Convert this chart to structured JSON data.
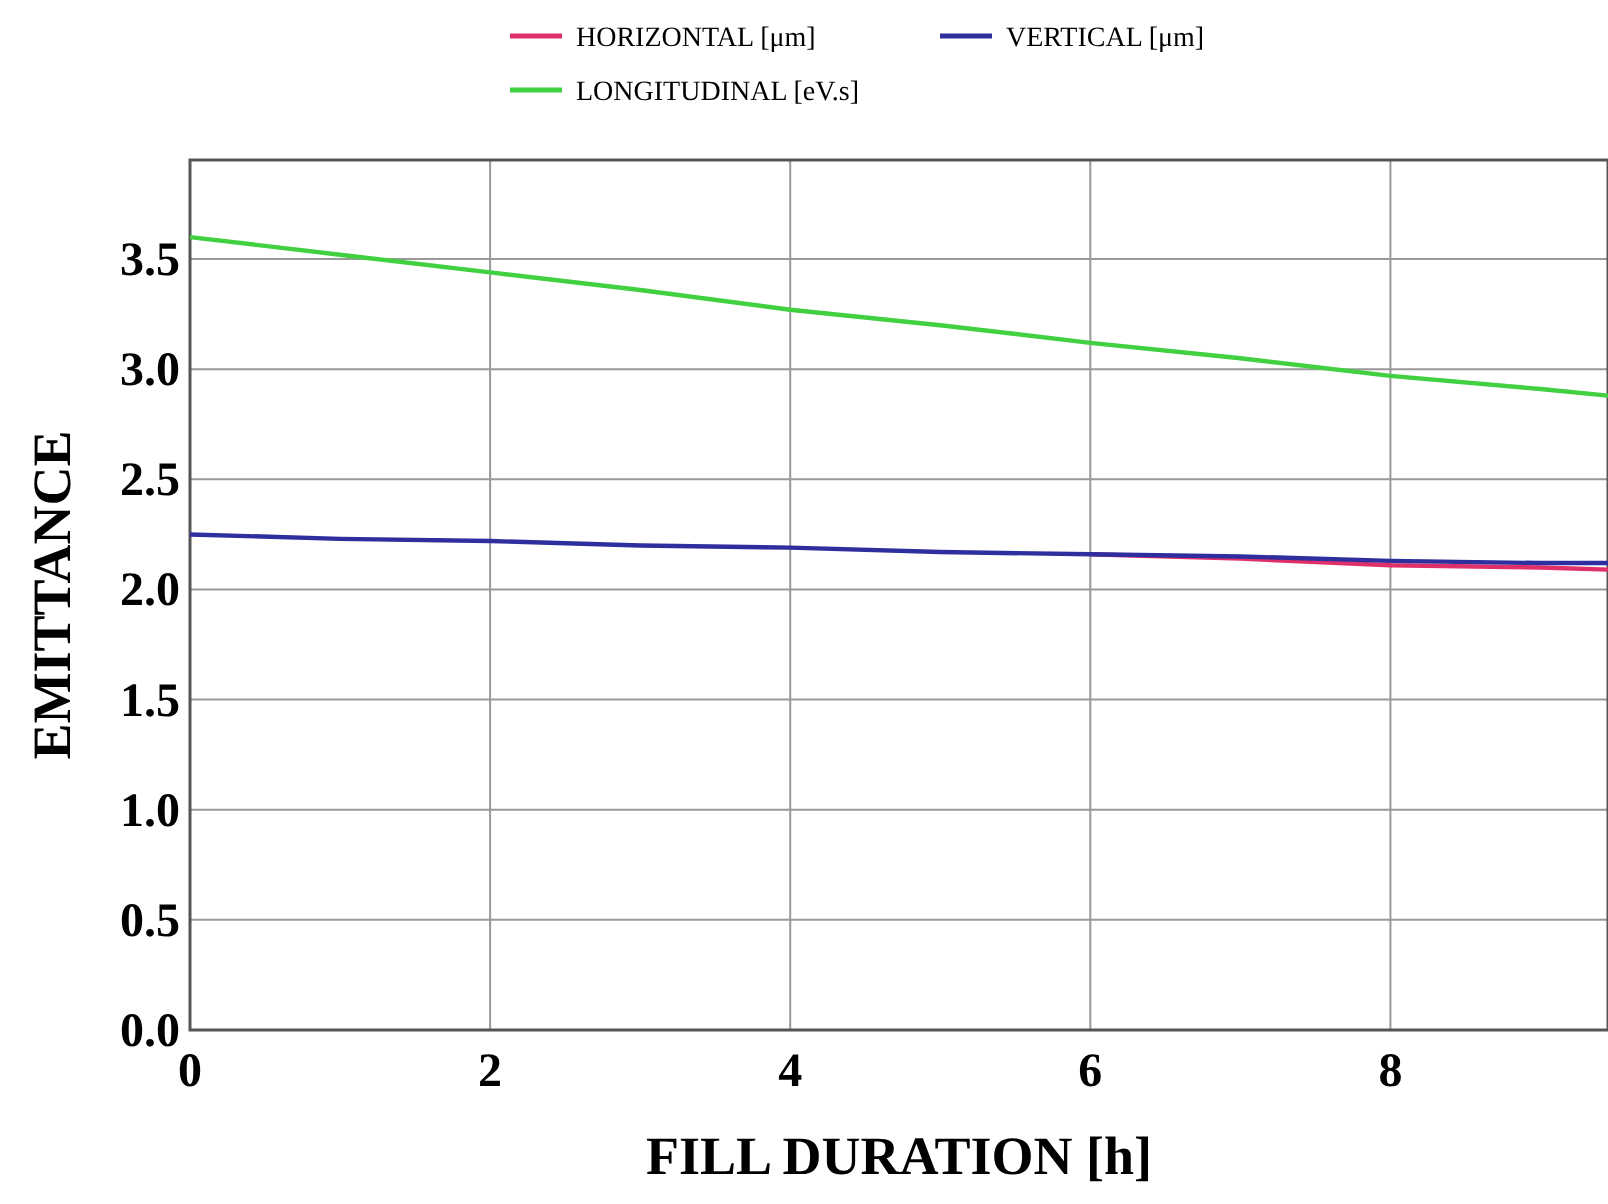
{
  "chart_data": {
    "type": "line",
    "xlabel": "FILL DURATION [h]",
    "ylabel": "EMITTANCE",
    "xlim": [
      0,
      9.45
    ],
    "xticks": [
      0,
      2,
      4,
      6,
      8
    ],
    "ylim": [
      0,
      3.95
    ],
    "yticks": [
      {
        "value": 0,
        "label": "0.0"
      },
      {
        "value": 0.5,
        "label": "0.5"
      },
      {
        "value": 1,
        "label": "1.0"
      },
      {
        "value": 1.5,
        "label": "1.5"
      },
      {
        "value": 2,
        "label": "2.0"
      },
      {
        "value": 2.5,
        "label": "2.5"
      },
      {
        "value": 3,
        "label": "3.0"
      },
      {
        "value": 3.5,
        "label": "3.5"
      }
    ],
    "grid": true,
    "legend": "top",
    "line_style": "solid",
    "x": [
      0,
      1,
      2,
      3,
      4,
      5,
      6,
      7,
      8,
      9,
      9.45
    ],
    "series": [
      {
        "name": "HORIZONTAL [μm]",
        "color": "#e0306a",
        "values": [
          null,
          null,
          null,
          null,
          null,
          null,
          2.16,
          2.14,
          2.11,
          2.1,
          2.09
        ]
      },
      {
        "name": "VERTICAL [μm]",
        "color": "#2e2e9e",
        "values": [
          2.25,
          2.23,
          2.22,
          2.2,
          2.19,
          2.17,
          2.16,
          2.15,
          2.13,
          2.12,
          2.12
        ]
      },
      {
        "name": "LONGITUDINAL [eV.s]",
        "color": "#40d040",
        "values": [
          3.6,
          3.52,
          3.44,
          3.36,
          3.27,
          3.2,
          3.12,
          3.05,
          2.97,
          2.91,
          2.88
        ]
      }
    ]
  }
}
